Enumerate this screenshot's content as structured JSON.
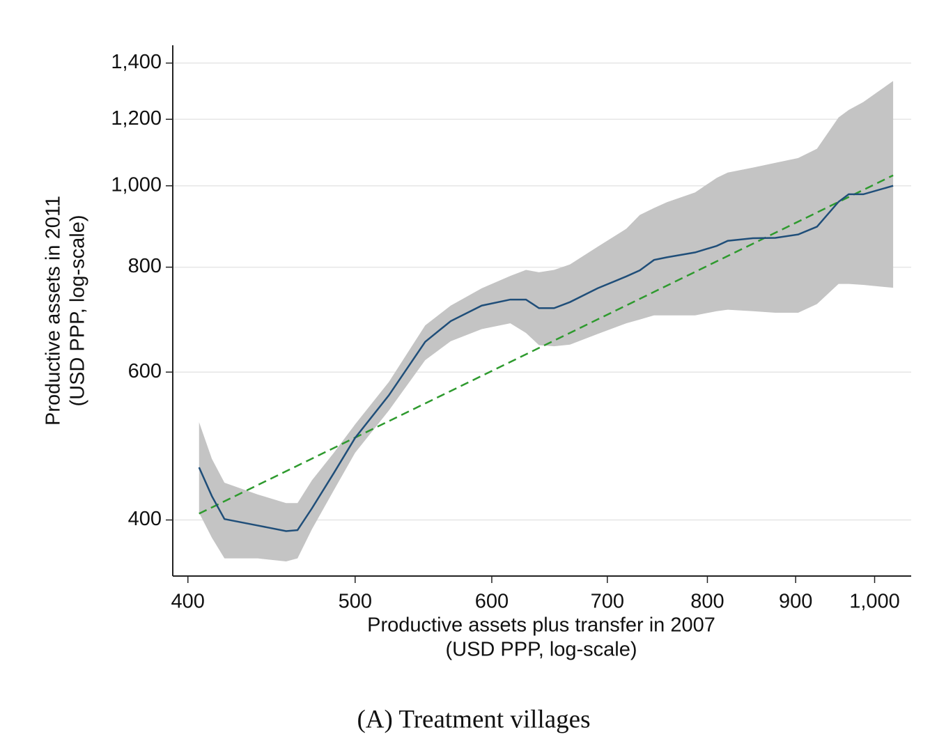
{
  "chart_data": {
    "type": "line",
    "xlabel": [
      "Productive assets plus transfer in 2007",
      "(USD PPP, log-scale)"
    ],
    "ylabel": [
      "Productive assets in 2011",
      "(USD PPP, log-scale)"
    ],
    "caption": "(A) Treatment villages",
    "xscale": "log",
    "yscale": "log",
    "grid": true,
    "xlim": [
      392,
      1050
    ],
    "ylim": [
      343,
      1470
    ],
    "xticks": [
      400,
      500,
      600,
      700,
      800,
      900,
      {
        "value": 1000,
        "label": "1,000"
      }
    ],
    "yticks": [
      400,
      600,
      800,
      {
        "value": 1000,
        "label": "1,000"
      },
      {
        "value": 1200,
        "label": "1,200"
      },
      {
        "value": 1400,
        "label": "1,400"
      }
    ],
    "band": {
      "color": "#c4c4c4",
      "x": [
        406,
        413,
        420,
        439,
        456,
        463,
        472,
        486,
        500,
        523,
        549,
        568,
        592,
        615,
        628,
        639,
        652,
        666,
        691,
        718,
        731,
        745,
        758,
        787,
        810,
        822,
        850,
        876,
        903,
        926,
        953,
        966,
        985,
        1025
      ],
      "upper": [
        523,
        473,
        443,
        429,
        419,
        419,
        446,
        481,
        520,
        584,
        682,
        720,
        755,
        781,
        794,
        789,
        794,
        806,
        846,
        889,
        923,
        941,
        956,
        982,
        1022,
        1037,
        1051,
        1065,
        1079,
        1107,
        1206,
        1231,
        1258,
        1333
      ],
      "lower": [
        408,
        381,
        360,
        360,
        357,
        360,
        390,
        434,
        481,
        540,
        620,
        653,
        675,
        686,
        668,
        646,
        644,
        647,
        666,
        686,
        693,
        701,
        701,
        701,
        709,
        712,
        709,
        706,
        706,
        723,
        764,
        764,
        762,
        756
      ]
    },
    "line": {
      "color": "#1f4e79",
      "x": [
        406,
        413,
        420,
        439,
        456,
        463,
        472,
        486,
        500,
        523,
        549,
        568,
        592,
        615,
        628,
        639,
        652,
        666,
        691,
        718,
        731,
        745,
        758,
        787,
        810,
        822,
        850,
        876,
        903,
        926,
        953,
        966,
        985,
        1025
      ],
      "values": [
        462,
        427,
        401,
        394,
        388,
        389,
        413,
        455,
        501,
        563,
        652,
        690,
        720,
        732,
        732,
        715,
        715,
        727,
        755,
        780,
        793,
        816,
        822,
        833,
        848,
        860,
        866,
        867,
        875,
        894,
        957,
        977,
        977,
        1000
      ]
    },
    "fit": {
      "color": "#2e9a2e",
      "x": [
        406,
        1025
      ],
      "values": [
        407,
        1029
      ]
    }
  }
}
